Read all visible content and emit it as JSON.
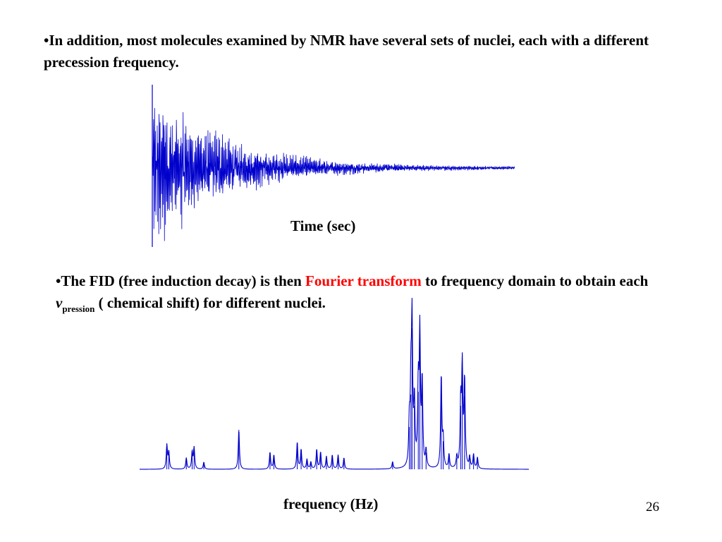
{
  "slide": {
    "bullet1": "•In addition,  most molecules examined by NMR have several sets of nuclei, each with a different precession frequency.",
    "bullet2_pre": "•The FID (free induction decay) is then ",
    "bullet2_highlight": "Fourier transform",
    "bullet2_mid": " to frequency domain to obtain each ",
    "nu_symbol": "v",
    "nu_subscript": "pression",
    "bullet2_post": "  ( chemical shift) for different nuclei.",
    "time_caption": "Time (sec)",
    "freq_caption": "frequency (Hz)",
    "page_number": "26"
  },
  "colors": {
    "text": "#000000",
    "highlight": "#ff0000",
    "trace": "#0000cc"
  },
  "chart_data": [
    {
      "type": "line",
      "description_key": "fid",
      "xlabel": "Time (sec)",
      "tick_labels": [
        "",
        "",
        "",
        "",
        "",
        "",
        "",
        "",
        "",
        "",
        ""
      ],
      "signal": {
        "decay": "exponential",
        "amplitude": 1.0
      }
    },
    {
      "type": "line",
      "description_key": "spectrum",
      "xlabel": "frequency (Hz)",
      "peaks": [
        {
          "pos": 0.07,
          "h": 0.17
        },
        {
          "pos": 0.075,
          "h": 0.12
        },
        {
          "pos": 0.12,
          "h": 0.08
        },
        {
          "pos": 0.135,
          "h": 0.12
        },
        {
          "pos": 0.14,
          "h": 0.15
        },
        {
          "pos": 0.165,
          "h": 0.05
        },
        {
          "pos": 0.255,
          "h": 0.28
        },
        {
          "pos": 0.335,
          "h": 0.12
        },
        {
          "pos": 0.345,
          "h": 0.1
        },
        {
          "pos": 0.405,
          "h": 0.19
        },
        {
          "pos": 0.415,
          "h": 0.14
        },
        {
          "pos": 0.43,
          "h": 0.07
        },
        {
          "pos": 0.44,
          "h": 0.05
        },
        {
          "pos": 0.455,
          "h": 0.14
        },
        {
          "pos": 0.465,
          "h": 0.12
        },
        {
          "pos": 0.48,
          "h": 0.09
        },
        {
          "pos": 0.495,
          "h": 0.1
        },
        {
          "pos": 0.51,
          "h": 0.1
        },
        {
          "pos": 0.525,
          "h": 0.08
        },
        {
          "pos": 0.65,
          "h": 0.05
        },
        {
          "pos": 0.693,
          "h": 0.3
        },
        {
          "pos": 0.697,
          "h": 0.53
        },
        {
          "pos": 0.7,
          "h": 1.0
        },
        {
          "pos": 0.706,
          "h": 0.45
        },
        {
          "pos": 0.716,
          "h": 0.55
        },
        {
          "pos": 0.72,
          "h": 0.93
        },
        {
          "pos": 0.726,
          "h": 0.6
        },
        {
          "pos": 0.736,
          "h": 0.12
        },
        {
          "pos": 0.775,
          "h": 0.66
        },
        {
          "pos": 0.78,
          "h": 0.2
        },
        {
          "pos": 0.795,
          "h": 0.1
        },
        {
          "pos": 0.815,
          "h": 0.08
        },
        {
          "pos": 0.835,
          "h": 0.1
        },
        {
          "pos": 0.825,
          "h": 0.45
        },
        {
          "pos": 0.829,
          "h": 0.7
        },
        {
          "pos": 0.835,
          "h": 0.52
        },
        {
          "pos": 0.848,
          "h": 0.08
        },
        {
          "pos": 0.858,
          "h": 0.1
        },
        {
          "pos": 0.868,
          "h": 0.08
        }
      ]
    }
  ]
}
